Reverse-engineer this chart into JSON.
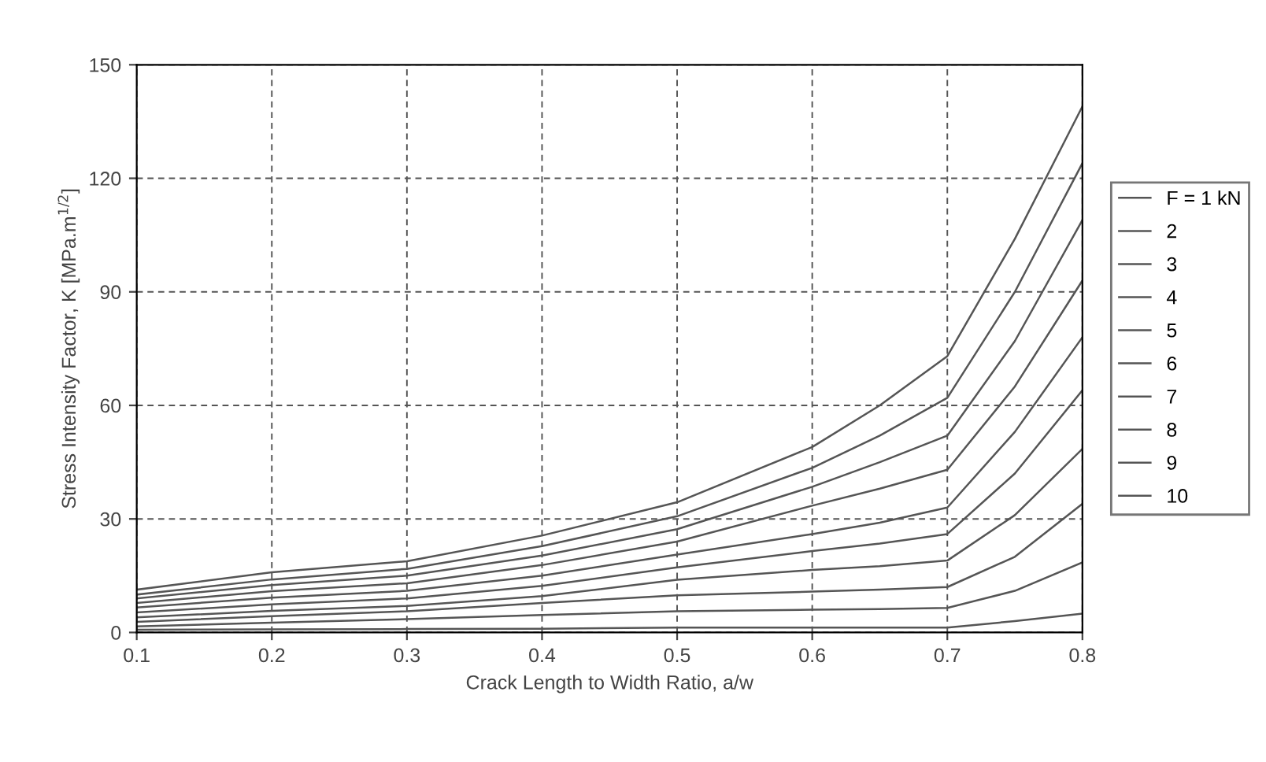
{
  "chart_data": {
    "type": "line",
    "xlabel": "Crack Length to Width Ratio, a/w",
    "ylabel": "Stress Intensity Factor, K [MPa.m$^{1/2}$]",
    "x": [
      0.1,
      0.2,
      0.3,
      0.4,
      0.5,
      0.6,
      0.65,
      0.7,
      0.75,
      0.8
    ],
    "xlim": [
      0.1,
      0.8
    ],
    "xticks": [
      {
        "value": 0.1,
        "label": "0.1"
      },
      {
        "value": 0.2,
        "label": "0.2"
      },
      {
        "value": 0.3,
        "label": "0.3"
      },
      {
        "value": 0.4,
        "label": "0.4"
      },
      {
        "value": 0.5,
        "label": "0.5"
      },
      {
        "value": 0.6,
        "label": "0.6"
      },
      {
        "value": 0.7,
        "label": "0.7"
      },
      {
        "value": 0.8,
        "label": "0.8"
      }
    ],
    "ylim": [
      0,
      150
    ],
    "yticks": [
      0,
      30,
      60,
      90,
      120,
      150
    ],
    "grid": true,
    "legend": "right",
    "marker": "none",
    "line_style": "solid",
    "series": [
      {
        "name": "F = 1 kN",
        "color": "#555555",
        "values": [
          0.7,
          0.8,
          0.9,
          1,
          1.3,
          1.3,
          1.3,
          1.3,
          3,
          5
        ]
      },
      {
        "name": "2",
        "color": "#555555",
        "values": [
          1.6,
          2.6,
          3.5,
          4.6,
          5.6,
          6,
          6.2,
          6.5,
          11,
          18.5
        ]
      },
      {
        "name": "3",
        "color": "#555555",
        "values": [
          2.8,
          4.3,
          5.6,
          7.8,
          9.8,
          10.8,
          11.3,
          12,
          20,
          34
        ]
      },
      {
        "name": "4",
        "color": "#555555",
        "values": [
          4,
          5.7,
          7,
          9.6,
          13.9,
          16.5,
          17.5,
          19,
          31,
          48.5
        ]
      },
      {
        "name": "5",
        "color": "#555555",
        "values": [
          5.3,
          7.4,
          9,
          12.3,
          17.2,
          21.5,
          23.5,
          26,
          42,
          64
        ]
      },
      {
        "name": "6",
        "color": "#555555",
        "values": [
          6.6,
          9.2,
          11,
          15,
          20.6,
          26,
          29,
          33,
          53,
          78
        ]
      },
      {
        "name": "7",
        "color": "#555555",
        "values": [
          7.8,
          10.9,
          13,
          17.8,
          24,
          33.5,
          38,
          43,
          65,
          93
        ]
      },
      {
        "name": "8",
        "color": "#555555",
        "values": [
          9,
          12.5,
          15,
          20.3,
          27.3,
          38.5,
          45,
          52,
          77,
          109
        ]
      },
      {
        "name": "9",
        "color": "#555555",
        "values": [
          10,
          14,
          16.8,
          22.8,
          30.7,
          43.5,
          52,
          62,
          90,
          124
        ]
      },
      {
        "name": "10",
        "color": "#555555",
        "values": [
          11.3,
          15.9,
          18.8,
          25.6,
          34.4,
          49,
          60,
          73,
          104,
          139
        ]
      }
    ]
  }
}
